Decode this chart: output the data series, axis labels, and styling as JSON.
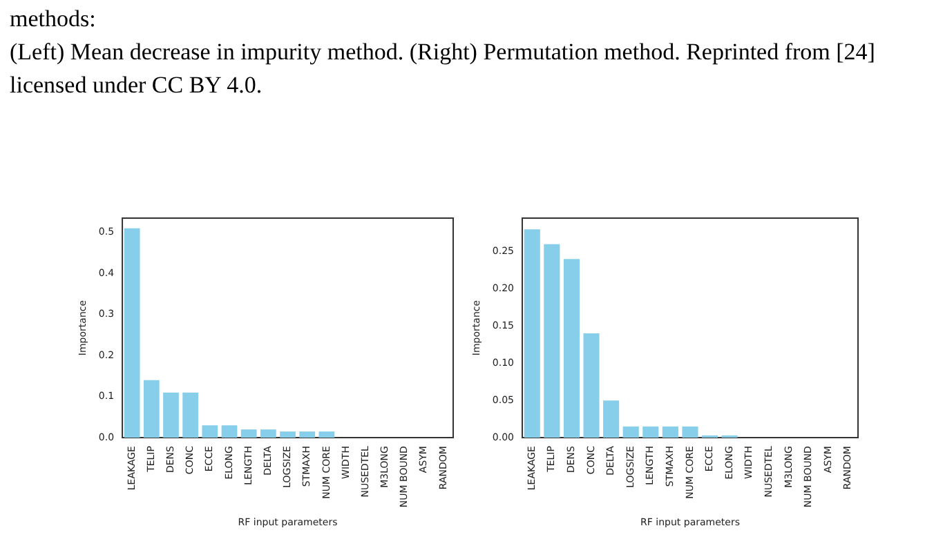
{
  "chart_data": [
    {
      "type": "bar",
      "xlabel": "RF input parameters",
      "ylabel": "Importance",
      "annotations": [
        "methods:",
        "(Left) Mean decrease in impurity method. (Right) Permutation method. Reprinted from [24] licensed under CC BY 4.0."
      ],
      "categories": [
        "LEAKAGE",
        "TELIP",
        "DENS",
        "CONC",
        "ECCE",
        "ELONG",
        "LENGTH",
        "DELTA",
        "LOGSIZE",
        "STMAXH",
        "NUM CORE",
        "WIDTH",
        "NUSEDTEL",
        "M3LONG",
        "NUM BOUND",
        "ASYM",
        "RANDOM"
      ],
      "values": [
        0.51,
        0.14,
        0.11,
        0.11,
        0.03,
        0.03,
        0.02,
        0.02,
        0.015,
        0.015,
        0.015,
        0,
        0,
        0,
        0,
        0,
        0
      ],
      "color": "#87ceeb",
      "ylim": [
        0,
        0.535
      ],
      "yticks": [
        {
          "value": 0,
          "label": "0.0"
        },
        {
          "value": 0.1,
          "label": "0.1"
        },
        {
          "value": 0.2,
          "label": "0.2"
        },
        {
          "value": 0.3,
          "label": "0.3"
        },
        {
          "value": 0.4,
          "label": "0.4"
        },
        {
          "value": 0.5,
          "label": "0.5"
        }
      ]
    },
    {
      "type": "bar",
      "xlabel": "RF input parameters",
      "ylabel": "Importance",
      "categories": [
        "LEAKAGE",
        "TELIP",
        "DENS",
        "CONC",
        "DELTA",
        "LOGSIZE",
        "LENGTH",
        "STMAXH",
        "NUM CORE",
        "ECCE",
        "ELONG",
        "WIDTH",
        "NUSEDTEL",
        "M3LONG",
        "NUM BOUND",
        "ASYM",
        "RANDOM"
      ],
      "values": [
        0.28,
        0.26,
        0.24,
        0.14,
        0.05,
        0.015,
        0.015,
        0.015,
        0.015,
        0.003,
        0.003,
        0,
        0,
        0,
        0,
        0,
        0
      ],
      "color": "#87ceeb",
      "ylim": [
        0,
        0.295
      ],
      "yticks": [
        {
          "value": 0,
          "label": "0.00"
        },
        {
          "value": 0.05,
          "label": "0.05"
        },
        {
          "value": 0.1,
          "label": "0.10"
        },
        {
          "value": 0.15,
          "label": "0.15"
        },
        {
          "value": 0.2,
          "label": "0.20"
        },
        {
          "value": 0.25,
          "label": "0.25"
        }
      ]
    }
  ]
}
